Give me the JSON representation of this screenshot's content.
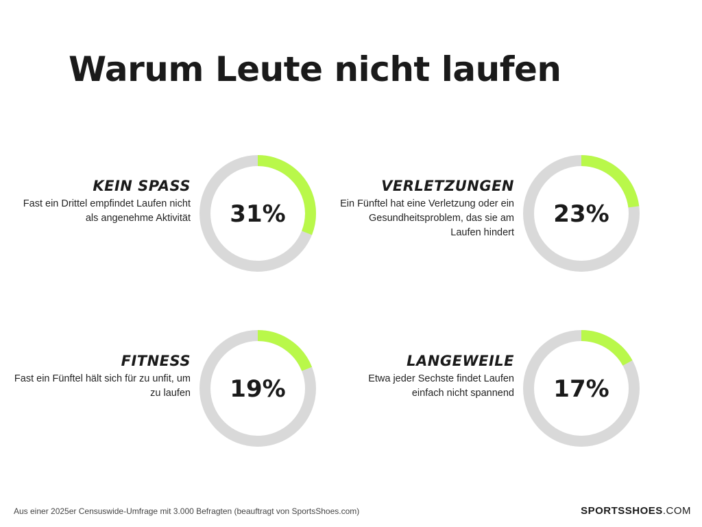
{
  "title": "Warum Leute nicht laufen",
  "chart_data": [
    {
      "type": "pie",
      "label": "KEIN SPASS",
      "description": "Fast ein Drittel empfindet Laufen nicht als angenehme Aktivität",
      "value": 31,
      "value_label": "31%"
    },
    {
      "type": "pie",
      "label": "VERLETZUNGEN",
      "description": "Ein Fünftel hat eine Verletzung oder ein Gesundheitsproblem, das sie am Laufen hindert",
      "value": 23,
      "value_label": "23%"
    },
    {
      "type": "pie",
      "label": "FITNESS",
      "description": "Fast ein Fünftel hält sich für zu unfit, um zu laufen",
      "value": 19,
      "value_label": "19%"
    },
    {
      "type": "pie",
      "label": "LANGEWEILE",
      "description": "Etwa jeder Sechste findet Laufen einfach nicht spannend",
      "value": 17,
      "value_label": "17%"
    }
  ],
  "colors": {
    "accent": "#b9f84a",
    "track": "#d9d9d9",
    "text": "#1a1a1a"
  },
  "footer": {
    "source": "Aus einer 2025er Censuswide-Umfrage mit 3.000 Befragten (beauftragt von SportsShoes.com)",
    "logo_bold": "SPORTSSHOES",
    "logo_rest": ".COM"
  }
}
